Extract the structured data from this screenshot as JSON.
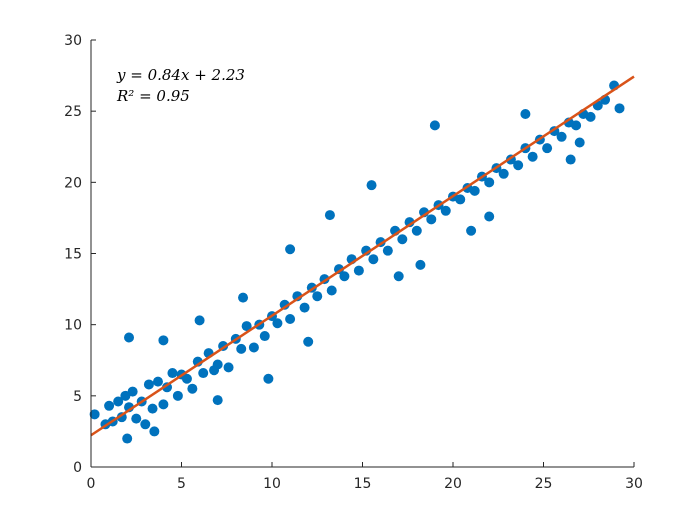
{
  "chart_data": {
    "type": "scatter",
    "title": "",
    "xlabel": "",
    "ylabel": "",
    "xlim": [
      0,
      30
    ],
    "ylim": [
      0,
      30
    ],
    "x_ticks": [
      0,
      5,
      10,
      15,
      20,
      25,
      30
    ],
    "y_ticks": [
      0,
      5,
      10,
      15,
      20,
      25,
      30
    ],
    "x_tick_labels": [
      "0",
      "5",
      "10",
      "15",
      "20",
      "25",
      "30"
    ],
    "y_tick_labels": [
      "0",
      "5",
      "10",
      "15",
      "20",
      "25",
      "30"
    ],
    "grid": false,
    "legend": "none",
    "colors": {
      "points": "#0072BD",
      "fit": "#D95319",
      "axis": "#262626"
    },
    "series": [
      {
        "kind": "points",
        "color": "#0072BD",
        "x": [
          0.2,
          0.8,
          1.0,
          1.2,
          1.5,
          1.7,
          1.9,
          2.0,
          2.1,
          2.3,
          2.5,
          2.8,
          3.0,
          3.2,
          3.4,
          3.7,
          4.0,
          4.2,
          4.5,
          4.8,
          5.0,
          5.3,
          5.6,
          5.9,
          6.2,
          6.5,
          6.8,
          7.0,
          7.3,
          7.6,
          8.0,
          8.3,
          8.6,
          9.0,
          9.3,
          9.6,
          10.0,
          10.3,
          10.7,
          11.0,
          11.4,
          11.8,
          12.2,
          12.5,
          12.9,
          13.3,
          13.7,
          14.0,
          14.4,
          14.8,
          15.2,
          15.6,
          16.0,
          16.4,
          16.8,
          17.2,
          17.6,
          18.0,
          18.4,
          18.8,
          19.2,
          19.6,
          20.0,
          20.4,
          20.8,
          21.2,
          21.6,
          22.0,
          22.4,
          22.8,
          23.2,
          23.6,
          24.0,
          24.4,
          24.8,
          25.2,
          25.6,
          26.0,
          26.4,
          26.8,
          27.2,
          27.6,
          28.0,
          28.4,
          28.9,
          29.2,
          2.1,
          4.0,
          8.4,
          11.0,
          13.2,
          19.0,
          24.0,
          3.5,
          7.0,
          17.0,
          22.0,
          26.5,
          6.0,
          12.0,
          18.2,
          27.0,
          9.8,
          15.5,
          21.0
        ],
        "y": [
          3.7,
          3.0,
          4.3,
          3.2,
          4.6,
          3.5,
          5.0,
          2.0,
          4.2,
          5.3,
          3.4,
          4.6,
          3.0,
          5.8,
          4.1,
          6.0,
          4.4,
          5.6,
          6.6,
          5.0,
          6.5,
          6.2,
          5.5,
          7.4,
          6.6,
          8.0,
          6.8,
          7.2,
          8.5,
          7.0,
          9.0,
          8.3,
          9.9,
          8.4,
          10.0,
          9.2,
          10.6,
          10.1,
          11.4,
          10.4,
          12.0,
          11.2,
          12.6,
          12.0,
          13.2,
          12.4,
          13.9,
          13.4,
          14.6,
          13.8,
          15.2,
          14.6,
          15.8,
          15.2,
          16.6,
          16.0,
          17.2,
          16.6,
          17.9,
          17.4,
          18.4,
          18.0,
          19.0,
          18.8,
          19.6,
          19.4,
          20.4,
          20.0,
          21.0,
          20.6,
          21.6,
          21.2,
          22.4,
          21.8,
          23.0,
          22.4,
          23.6,
          23.2,
          24.2,
          24.0,
          24.8,
          24.6,
          25.4,
          25.8,
          26.8,
          25.2,
          9.1,
          8.9,
          11.9,
          15.3,
          17.7,
          24.0,
          24.8,
          2.5,
          4.7,
          13.4,
          17.6,
          21.6,
          10.3,
          8.8,
          14.2,
          22.8,
          6.2,
          19.8,
          16.6
        ]
      },
      {
        "kind": "fit-line",
        "color": "#D95319",
        "slope": 0.84,
        "intercept": 2.23,
        "x_range": [
          0,
          30
        ]
      }
    ],
    "annotations": {
      "equation": "y = 0.84x + 2.23",
      "r_squared": "R² = 0.95"
    }
  }
}
